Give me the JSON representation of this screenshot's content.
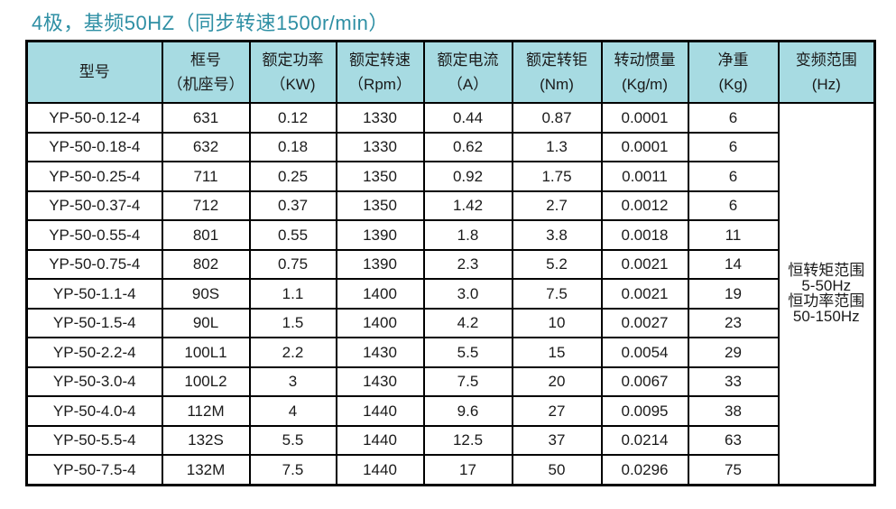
{
  "title": "4极，基频50HZ（同步转速1500r/min）",
  "colors": {
    "title_text": "#2e8fa4",
    "header_background": "#a7dbe2",
    "border": "#000000",
    "body_text": "#1a1a1a",
    "page_background": "#ffffff"
  },
  "table": {
    "columns": [
      {
        "line1": "型号",
        "line2": ""
      },
      {
        "line1": "框号",
        "line2": "（机座号）"
      },
      {
        "line1": "额定功率",
        "line2": "（KW)"
      },
      {
        "line1": "额定转速",
        "line2": "（Rpm）"
      },
      {
        "line1": "额定电流",
        "line2": "（A）"
      },
      {
        "line1": "额定转钜",
        "line2": "(Nm)"
      },
      {
        "line1": "转动惯量",
        "line2": "(Kg/m)"
      },
      {
        "line1": "净重",
        "line2": "(Kg)"
      },
      {
        "line1": "变频范围",
        "line2": "(Hz)"
      }
    ],
    "rows": [
      [
        "YP-50-0.12-4",
        "631",
        "0.12",
        "1330",
        "0.44",
        "0.87",
        "0.0001",
        "6"
      ],
      [
        "YP-50-0.18-4",
        "632",
        "0.18",
        "1330",
        "0.62",
        "1.3",
        "0.0001",
        "6"
      ],
      [
        "YP-50-0.25-4",
        "711",
        "0.25",
        "1350",
        "0.92",
        "1.75",
        "0.0011",
        "6"
      ],
      [
        "YP-50-0.37-4",
        "712",
        "0.37",
        "1350",
        "1.42",
        "2.7",
        "0.0012",
        "6"
      ],
      [
        "YP-50-0.55-4",
        "801",
        "0.55",
        "1390",
        "1.8",
        "3.8",
        "0.0018",
        "11"
      ],
      [
        "YP-50-0.75-4",
        "802",
        "0.75",
        "1390",
        "2.3",
        "5.2",
        "0.0021",
        "14"
      ],
      [
        "YP-50-1.1-4",
        "90S",
        "1.1",
        "1400",
        "3.0",
        "7.5",
        "0.0021",
        "19"
      ],
      [
        "YP-50-1.5-4",
        "90L",
        "1.5",
        "1400",
        "4.2",
        "10",
        "0.0027",
        "23"
      ],
      [
        "YP-50-2.2-4",
        "100L1",
        "2.2",
        "1430",
        "5.5",
        "15",
        "0.0054",
        "29"
      ],
      [
        "YP-50-3.0-4",
        "100L2",
        "3",
        "1430",
        "7.5",
        "20",
        "0.0067",
        "33"
      ],
      [
        "YP-50-4.0-4",
        "112M",
        "4",
        "1440",
        "9.6",
        "27",
        "0.0095",
        "38"
      ],
      [
        "YP-50-5.5-4",
        "132S",
        "5.5",
        "1440",
        "12.5",
        "37",
        "0.0214",
        "63"
      ],
      [
        "YP-50-7.5-4",
        "132M",
        "7.5",
        "1440",
        "17",
        "50",
        "0.0296",
        "75"
      ]
    ],
    "freq_range_lines": [
      "恒转矩范围",
      "5-50Hz",
      "恒功率范围",
      "50-150Hz"
    ]
  }
}
